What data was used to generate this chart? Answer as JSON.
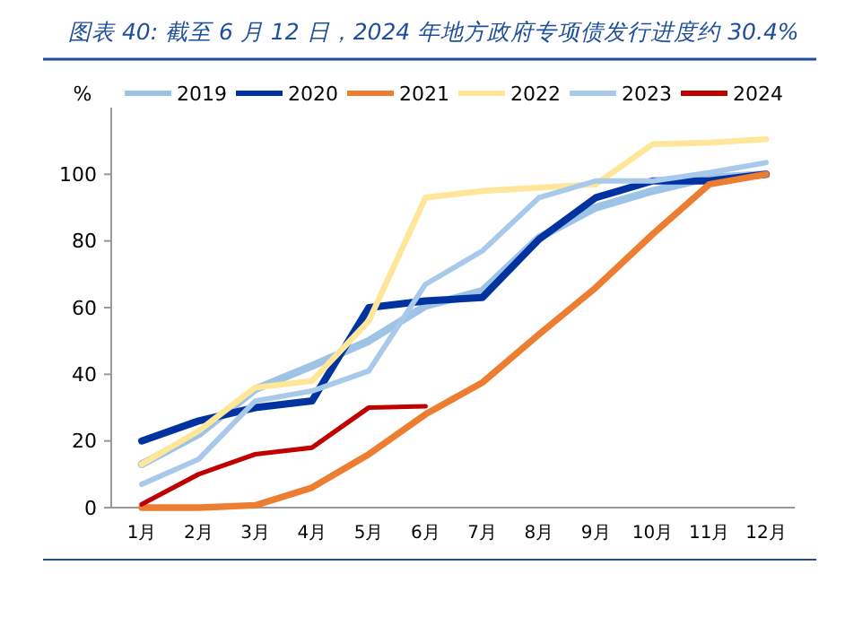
{
  "chart_data": {
    "type": "line",
    "title": "图表 40:  截至 6 月 12 日，2024 年地方政府专项债发行进度约 30.4%",
    "ylabel": "%",
    "categories": [
      "1月",
      "2月",
      "3月",
      "4月",
      "5月",
      "6月",
      "7月",
      "8月",
      "9月",
      "10月",
      "11月",
      "12月"
    ],
    "series": [
      {
        "name": "2019",
        "color": "#9dc3e6",
        "values": [
          13,
          22,
          35.5,
          42.5,
          50,
          60.5,
          65,
          81,
          90,
          95,
          99,
          100
        ]
      },
      {
        "name": "2020",
        "color": "#0033a0",
        "values": [
          20,
          26,
          30,
          32,
          60,
          62,
          63,
          80.5,
          93,
          98,
          98,
          100
        ]
      },
      {
        "name": "2021",
        "color": "#ed7d31",
        "values": [
          0,
          0,
          0.7,
          6,
          16,
          28,
          37.5,
          52,
          66,
          82,
          97,
          100
        ]
      },
      {
        "name": "2022",
        "color": "#ffe699",
        "values": [
          13,
          23,
          36,
          38,
          56,
          93,
          95,
          96,
          97,
          109,
          109.5,
          110.5
        ]
      },
      {
        "name": "2023",
        "color": "#a9c9ea",
        "values": [
          7,
          14.5,
          32,
          35,
          41,
          67,
          77,
          93,
          98,
          98,
          100.5,
          103.5
        ]
      },
      {
        "name": "2024",
        "color": "#c00000",
        "values": [
          1,
          10,
          16,
          18,
          30,
          30.4,
          null,
          null,
          null,
          null,
          null,
          null
        ]
      }
    ],
    "ylim": [
      0,
      120
    ],
    "yticks": [
      0,
      20,
      40,
      60,
      80,
      100
    ],
    "legend": "top",
    "grid": false,
    "marker": "none",
    "line_style": "solid"
  }
}
